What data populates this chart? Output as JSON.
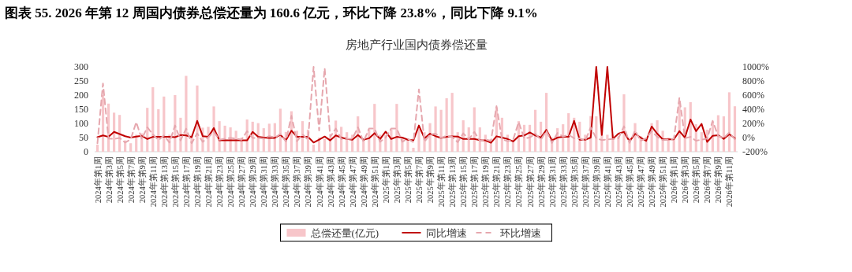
{
  "chart_data": {
    "type": "bar",
    "title": "图表 55. 2026 年第 12 周国内债券总偿还量为 160.6 亿元，环比下降 23.8%，同比下降 9.1%",
    "subtitle": "房地产行业国内债券偿还量",
    "categories": [
      "2024年第1周",
      null,
      "2024年第3周",
      null,
      "2024年第5周",
      null,
      "2024年第7周",
      null,
      "2024年第9周",
      null,
      "2024年第11周",
      null,
      "2024年第13周",
      null,
      "2024年第15周",
      null,
      "2024年第17周",
      null,
      "2024年第19周",
      null,
      "2024年第21周",
      null,
      "2024年第23周",
      null,
      "2024年第25周",
      null,
      "2024年第27周",
      null,
      "2024年第29周",
      null,
      "2024年第31周",
      null,
      "2024年第33周",
      null,
      "2024年第35周",
      null,
      "2024年第37周",
      null,
      "2024年第39周",
      null,
      "2024年第41周",
      null,
      "2024年第43周",
      null,
      "2024年第45周",
      null,
      "2024年第47周",
      null,
      "2024年第49周",
      null,
      "2024年第51周",
      null,
      "2025年第1周",
      null,
      "2025年第3周",
      null,
      "2025年第5周",
      null,
      "2025年第7周",
      null,
      "2025年第9周",
      null,
      "2025年第11周",
      null,
      "2025年第13周",
      null,
      "2025年第15周",
      null,
      "2025年第17周",
      null,
      "2025年第19周",
      null,
      "2025年第21周",
      null,
      "2025年第23周",
      null,
      "2025年第25周",
      null,
      "2025年第27周",
      null,
      "2025年第29周",
      null,
      "2025年第31周",
      null,
      "2025年第33周",
      null,
      "2025年第35周",
      null,
      "2025年第37周",
      null,
      "2025年第39周",
      null,
      "2025年第41周",
      null,
      "2025年第43周",
      null,
      "2025年第45周",
      null,
      "2025年第47周",
      null,
      "2025年第49周",
      null,
      "2025年第51周",
      null,
      "2026年第1周",
      null,
      "2026年第3周",
      null,
      "2026年第5周",
      null,
      "2026年第7周",
      null,
      "2026年第9周",
      null,
      "2026年第11周",
      null
    ],
    "series": [
      {
        "name": "总偿还量(亿元)",
        "color": "#f7c6ca",
        "values": [
          25,
          200,
          170,
          138,
          130,
          40,
          30,
          60,
          65,
          155,
          228,
          150,
          195,
          60,
          200,
          120,
          268,
          60,
          234,
          85,
          88,
          160,
          108,
          92,
          86,
          74,
          50,
          114,
          106,
          101,
          83,
          99,
          101,
          152,
          70,
          143,
          74,
          108,
          78,
          25,
          50,
          45,
          50,
          110,
          88,
          69,
          60,
          125,
          42,
          78,
          169,
          60,
          60,
          78,
          169,
          50,
          42,
          14,
          80,
          69,
          101,
          160,
          148,
          189,
          208,
          69,
          111,
          86,
          157,
          86,
          60,
          32,
          157,
          120,
          60,
          42,
          108,
          95,
          95,
          148,
          106,
          208,
          50,
          83,
          97,
          136,
          120,
          106,
          60,
          126,
          125,
          78,
          60,
          60,
          55,
          203,
          50,
          101,
          55,
          50,
          101,
          111,
          74,
          50,
          42,
          175,
          157,
          175,
          97,
          69,
          78,
          106,
          129,
          125,
          210,
          160.6
        ]
      },
      {
        "name": "同比增速",
        "type": "line",
        "axis": "y2",
        "line_style": "solid",
        "color": "#c00000",
        "values": [
          5,
          30,
          10,
          80,
          50,
          20,
          0,
          15,
          25,
          -20,
          10,
          10,
          10,
          10,
          5,
          35,
          30,
          5,
          236,
          20,
          10,
          135,
          -40,
          -40,
          -40,
          -40,
          -40,
          -40,
          80,
          10,
          0,
          -5,
          -5,
          40,
          -40,
          98,
          10,
          10,
          10,
          -70,
          -30,
          15,
          -40,
          30,
          0,
          -20,
          -30,
          36,
          -30,
          -10,
          62,
          -20,
          84,
          -20,
          10,
          0,
          -30,
          -40,
          171,
          -10,
          55,
          20,
          -5,
          10,
          18,
          15,
          -20,
          -20,
          -20,
          -36,
          -40,
          -73,
          18,
          0,
          -20,
          -55,
          20,
          30,
          73,
          30,
          0,
          109,
          -40,
          0,
          10,
          10,
          236,
          -30,
          -30,
          0,
          1000,
          36,
          1000,
          -18,
          55,
          80,
          -55,
          55,
          0,
          -47,
          156,
          55,
          -25,
          -25,
          -25,
          91,
          0,
          255,
          91,
          193,
          -62,
          25,
          33,
          -18,
          47,
          -9.1
        ]
      },
      {
        "name": "环比增速",
        "type": "line",
        "axis": "y2",
        "line_style": "dashed",
        "color": "#e6a7ae",
        "values": [
          -80,
          764,
          -15,
          -20,
          -5,
          -70,
          -25,
          218,
          -20,
          145,
          45,
          -35,
          30,
          -70,
          171,
          -40,
          127,
          -80,
          60,
          -60,
          5,
          80,
          -30,
          -15,
          -5,
          -15,
          -30,
          91,
          -5,
          -5,
          -15,
          20,
          0,
          50,
          -55,
          309,
          -50,
          45,
          -30,
          1000,
          100,
          980,
          10,
          127,
          -20,
          -20,
          -15,
          145,
          -60,
          127,
          127,
          -60,
          0,
          127,
          127,
          -60,
          -15,
          -65,
          680,
          -60,
          45,
          55,
          -5,
          25,
          10,
          -65,
          60,
          -25,
          80,
          -45,
          -30,
          -45,
          444,
          -25,
          -50,
          -30,
          218,
          -10,
          0,
          55,
          -30,
          95,
          -75,
          65,
          15,
          40,
          -10,
          -10,
          -45,
          145,
          -10,
          -35,
          -25,
          -20,
          -10,
          160,
          -75,
          100,
          -45,
          -10,
          90,
          10,
          -35,
          -30,
          -15,
          564,
          -10,
          10,
          -45,
          -30,
          -15,
          236,
          20,
          -5,
          70,
          -23.8
        ]
      }
    ],
    "ylim": [
      0,
      300
    ],
    "yticks": [
      0,
      50,
      100,
      150,
      200,
      250,
      300
    ],
    "y2lim": [
      -200,
      1000
    ],
    "y2ticks": [
      {
        "value": -200,
        "label": "-200%"
      },
      {
        "value": 0,
        "label": "0%"
      },
      {
        "value": 200,
        "label": "200%"
      },
      {
        "value": 400,
        "label": "400%"
      },
      {
        "value": 600,
        "label": "600%"
      },
      {
        "value": 800,
        "label": "800%"
      },
      {
        "value": 1000,
        "label": "1000%"
      }
    ],
    "legend": "bottom"
  }
}
